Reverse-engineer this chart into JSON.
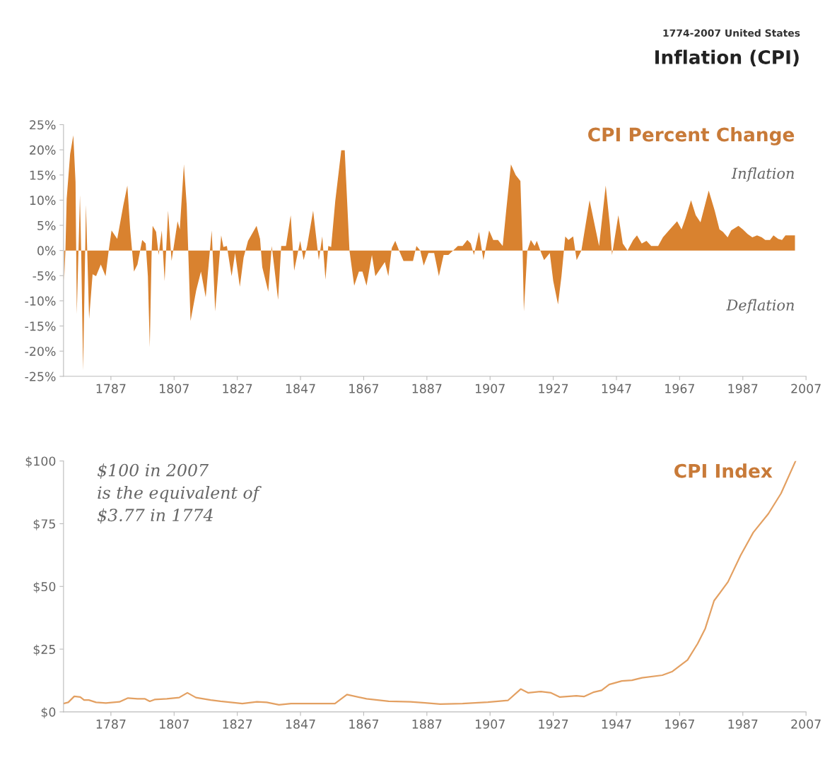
{
  "chart_data": [
    {
      "type": "other",
      "title": "Inflation (CPI)",
      "subtitle": "1774-2007 United States"
    },
    {
      "type": "area",
      "title": "CPI Percent Change",
      "annotations": [
        "Inflation",
        "Deflation"
      ],
      "xlim": [
        1772,
        2007
      ],
      "xticks": [
        1787,
        1807,
        1827,
        1847,
        1867,
        1887,
        1907,
        1927,
        1947,
        1967,
        1987,
        2007
      ],
      "ylim": [
        -25,
        25
      ],
      "yticks": [
        {
          "value": -25,
          "label": "-25%"
        },
        {
          "value": -20,
          "label": "-20%"
        },
        {
          "value": -15,
          "label": "-15%"
        },
        {
          "value": -10,
          "label": "-10%"
        },
        {
          "value": -5,
          "label": "-5%"
        },
        {
          "value": 0,
          "label": "0%"
        },
        {
          "value": 5,
          "label": "5%"
        },
        {
          "value": 10,
          "label": "10%"
        },
        {
          "value": 15,
          "label": "15%"
        },
        {
          "value": 20,
          "label": "20%"
        },
        {
          "value": 25,
          "label": "25%"
        }
      ],
      "series": [
        {
          "color": "#d9822f",
          "x": [
            1772.2,
            1772.6,
            1773.0,
            1774.1,
            1775.1,
            1775.8,
            1776.2,
            1777.2,
            1777.6,
            1778.2,
            1779.1,
            1780.1,
            1781.2,
            1782.3,
            1783.8,
            1785.3,
            1786.3,
            1787.2,
            1789.0,
            1790.9,
            1792.2,
            1793.1,
            1794.3,
            1795.4,
            1796.9,
            1798.0,
            1798.7,
            1799.3,
            1799.9,
            1800.2,
            1801.3,
            1802.1,
            1803.1,
            1804.0,
            1805.1,
            1806.2,
            1808.1,
            1808.8,
            1810.1,
            1811.0,
            1812.2,
            1814.0,
            1815.5,
            1817.0,
            1818.9,
            1820.0,
            1821.9,
            1822.6,
            1823.7,
            1825.2,
            1826.3,
            1827.8,
            1829.0,
            1830.4,
            1833.1,
            1834.2,
            1834.9,
            1836.8,
            1837.9,
            1838.7,
            1839.9,
            1840.9,
            1842.4,
            1843.9,
            1845.0,
            1846.9,
            1848.0,
            1849.1,
            1851.0,
            1852.8,
            1853.9,
            1854.9,
            1855.8,
            1856.7,
            1858.0,
            1859.9,
            1861.0,
            1862.5,
            1864.0,
            1865.5,
            1866.6,
            1867.9,
            1869.6,
            1870.7,
            1872.2,
            1873.7,
            1874.8,
            1875.9,
            1877.0,
            1878.2,
            1879.6,
            1882.6,
            1883.7,
            1884.9,
            1886.0,
            1887.5,
            1889.3,
            1890.8,
            1892.3,
            1893.8,
            1895.3,
            1896.8,
            1898.3,
            1899.8,
            1900.9,
            1901.9,
            1903.5,
            1904.9,
            1906.7,
            1908.0,
            1909.5,
            1911.0,
            1912.1,
            1913.6,
            1915.1,
            1916.6,
            1917.3,
            1917.7,
            1918.8,
            1919.9,
            1921.1,
            1921.8,
            1922.9,
            1924.1,
            1925.9,
            1927.0,
            1928.5,
            1929.6,
            1930.8,
            1931.8,
            1933.3,
            1934.4,
            1935.9,
            1938.5,
            1940.4,
            1941.5,
            1943.6,
            1944.9,
            1945.6,
            1947.6,
            1949.0,
            1950.5,
            1952.3,
            1953.5,
            1955.0,
            1956.5,
            1958.0,
            1960.2,
            1961.7,
            1963.9,
            1966.2,
            1967.6,
            1968.8,
            1970.6,
            1972.1,
            1973.6,
            1976.2,
            1978.1,
            1979.6,
            1980.7,
            1982.2,
            1983.3,
            1985.6,
            1987.0,
            1988.5,
            1990.0,
            1991.5,
            1993.0,
            1994.1,
            1995.6,
            1996.7,
            1998.2,
            1999.4,
            2000.5,
            2003.5
          ],
          "values": [
            -6.0,
            0,
            10.3,
            19.2,
            22.9,
            13.6,
            -12.6,
            11.0,
            -0.5,
            -23.8,
            9.1,
            -13.6,
            -4.7,
            -5.1,
            -2.8,
            -5.1,
            0,
            4.0,
            2.3,
            8.9,
            12.9,
            4.2,
            -4.2,
            -2.8,
            2.1,
            1.4,
            -5.1,
            -19.2,
            0,
            4.9,
            3.7,
            -0.9,
            4.0,
            -6.1,
            7.9,
            -2.1,
            5.8,
            4.2,
            17.1,
            8.9,
            -14.0,
            -7.9,
            -4.2,
            -9.3,
            4.0,
            -12.1,
            3.0,
            0.7,
            0.9,
            -5.1,
            -0.5,
            -7.2,
            -1.4,
            1.9,
            4.9,
            2.3,
            -3.3,
            -8.2,
            0.9,
            -3.3,
            -9.8,
            0.9,
            0.9,
            7.0,
            -4.0,
            1.9,
            -1.9,
            0.9,
            7.9,
            -1.9,
            2.8,
            -5.8,
            0.9,
            0.7,
            9.8,
            19.9,
            19.9,
            0,
            -7.0,
            -4.2,
            -4.2,
            -7.0,
            -0.9,
            -5.1,
            -3.7,
            -2.3,
            -5.1,
            0.5,
            1.9,
            0,
            -2.1,
            -2.1,
            0.9,
            0,
            -3.0,
            -0.5,
            -0.5,
            -5.1,
            -0.9,
            -0.9,
            0,
            0.9,
            0.9,
            2.1,
            1.4,
            -0.9,
            3.7,
            -1.9,
            4.0,
            2.1,
            2.1,
            0.9,
            7.9,
            17.1,
            15.0,
            13.8,
            0,
            -12.1,
            0,
            2.1,
            0.9,
            1.9,
            0,
            -1.9,
            -0.5,
            -6.1,
            -10.7,
            -5.1,
            2.8,
            2.1,
            2.8,
            -1.9,
            0,
            10.0,
            4.2,
            0.9,
            12.9,
            5.1,
            -0.9,
            7.0,
            1.4,
            0,
            2.1,
            3.0,
            1.4,
            1.9,
            0.9,
            0.9,
            2.6,
            4.2,
            5.8,
            4.2,
            6.3,
            10.0,
            7.0,
            5.6,
            11.9,
            7.9,
            4.2,
            3.7,
            2.6,
            4.0,
            4.9,
            4.2,
            3.3,
            2.6,
            3.0,
            2.6,
            2.1,
            2.1,
            3.0,
            2.3,
            2.1,
            3.0,
            3.0
          ]
        }
      ]
    },
    {
      "type": "line",
      "title": "CPI Index",
      "annotations": [
        "$100 in 2007\nis the equivalent of\n$3.77 in 1774"
      ],
      "xlim": [
        1772,
        2007
      ],
      "xticks": [
        1787,
        1807,
        1827,
        1847,
        1867,
        1887,
        1907,
        1927,
        1947,
        1967,
        1987,
        2007
      ],
      "ylim": [
        0,
        100
      ],
      "yticks": [
        {
          "value": 0,
          "label": "$0"
        },
        {
          "value": 25,
          "label": "$25"
        },
        {
          "value": 50,
          "label": "$50"
        },
        {
          "value": 75,
          "label": "$75"
        },
        {
          "value": 100,
          "label": "$100"
        }
      ],
      "series": [
        {
          "color": "#e3a062",
          "x": [
            1772,
            1773.5,
            1775.4,
            1777.3,
            1778.5,
            1780.0,
            1782.3,
            1785.4,
            1789.7,
            1792.4,
            1795.4,
            1797.8,
            1799.3,
            1800.8,
            1804.7,
            1808.6,
            1811.2,
            1813.9,
            1818.6,
            1821.7,
            1828.6,
            1833.2,
            1836.3,
            1840.2,
            1844.0,
            1851.0,
            1857.9,
            1861.7,
            1867.9,
            1874.9,
            1881.8,
            1886.4,
            1891.2,
            1898.3,
            1906.3,
            1912.7,
            1916.7,
            1919.1,
            1923.1,
            1926.3,
            1929.1,
            1934.3,
            1936.7,
            1939.9,
            1942.3,
            1944.7,
            1948.7,
            1951.9,
            1955.1,
            1961.5,
            1964.7,
            1969.5,
            1972.7,
            1975.1,
            1977.9,
            1982.3,
            1986.3,
            1990.3,
            1995.1,
            1999.1,
            2003.7
          ],
          "values": [
            3.3,
            3.8,
            6.2,
            5.9,
            4.7,
            4.7,
            3.8,
            3.5,
            4.0,
            5.5,
            5.2,
            5.2,
            4.2,
            4.9,
            5.2,
            5.7,
            7.6,
            5.7,
            4.7,
            4.2,
            3.3,
            4.0,
            3.8,
            2.8,
            3.3,
            3.3,
            3.3,
            6.9,
            5.2,
            4.2,
            4.0,
            3.6,
            3.1,
            3.3,
            3.9,
            4.6,
            9.1,
            7.6,
            8.1,
            7.6,
            5.9,
            6.4,
            6.1,
            7.9,
            8.6,
            10.9,
            12.3,
            12.6,
            13.6,
            14.6,
            16.1,
            20.7,
            27.2,
            33.2,
            44.3,
            51.8,
            62.4,
            71.5,
            79.0,
            87.1,
            100
          ]
        }
      ]
    }
  ]
}
